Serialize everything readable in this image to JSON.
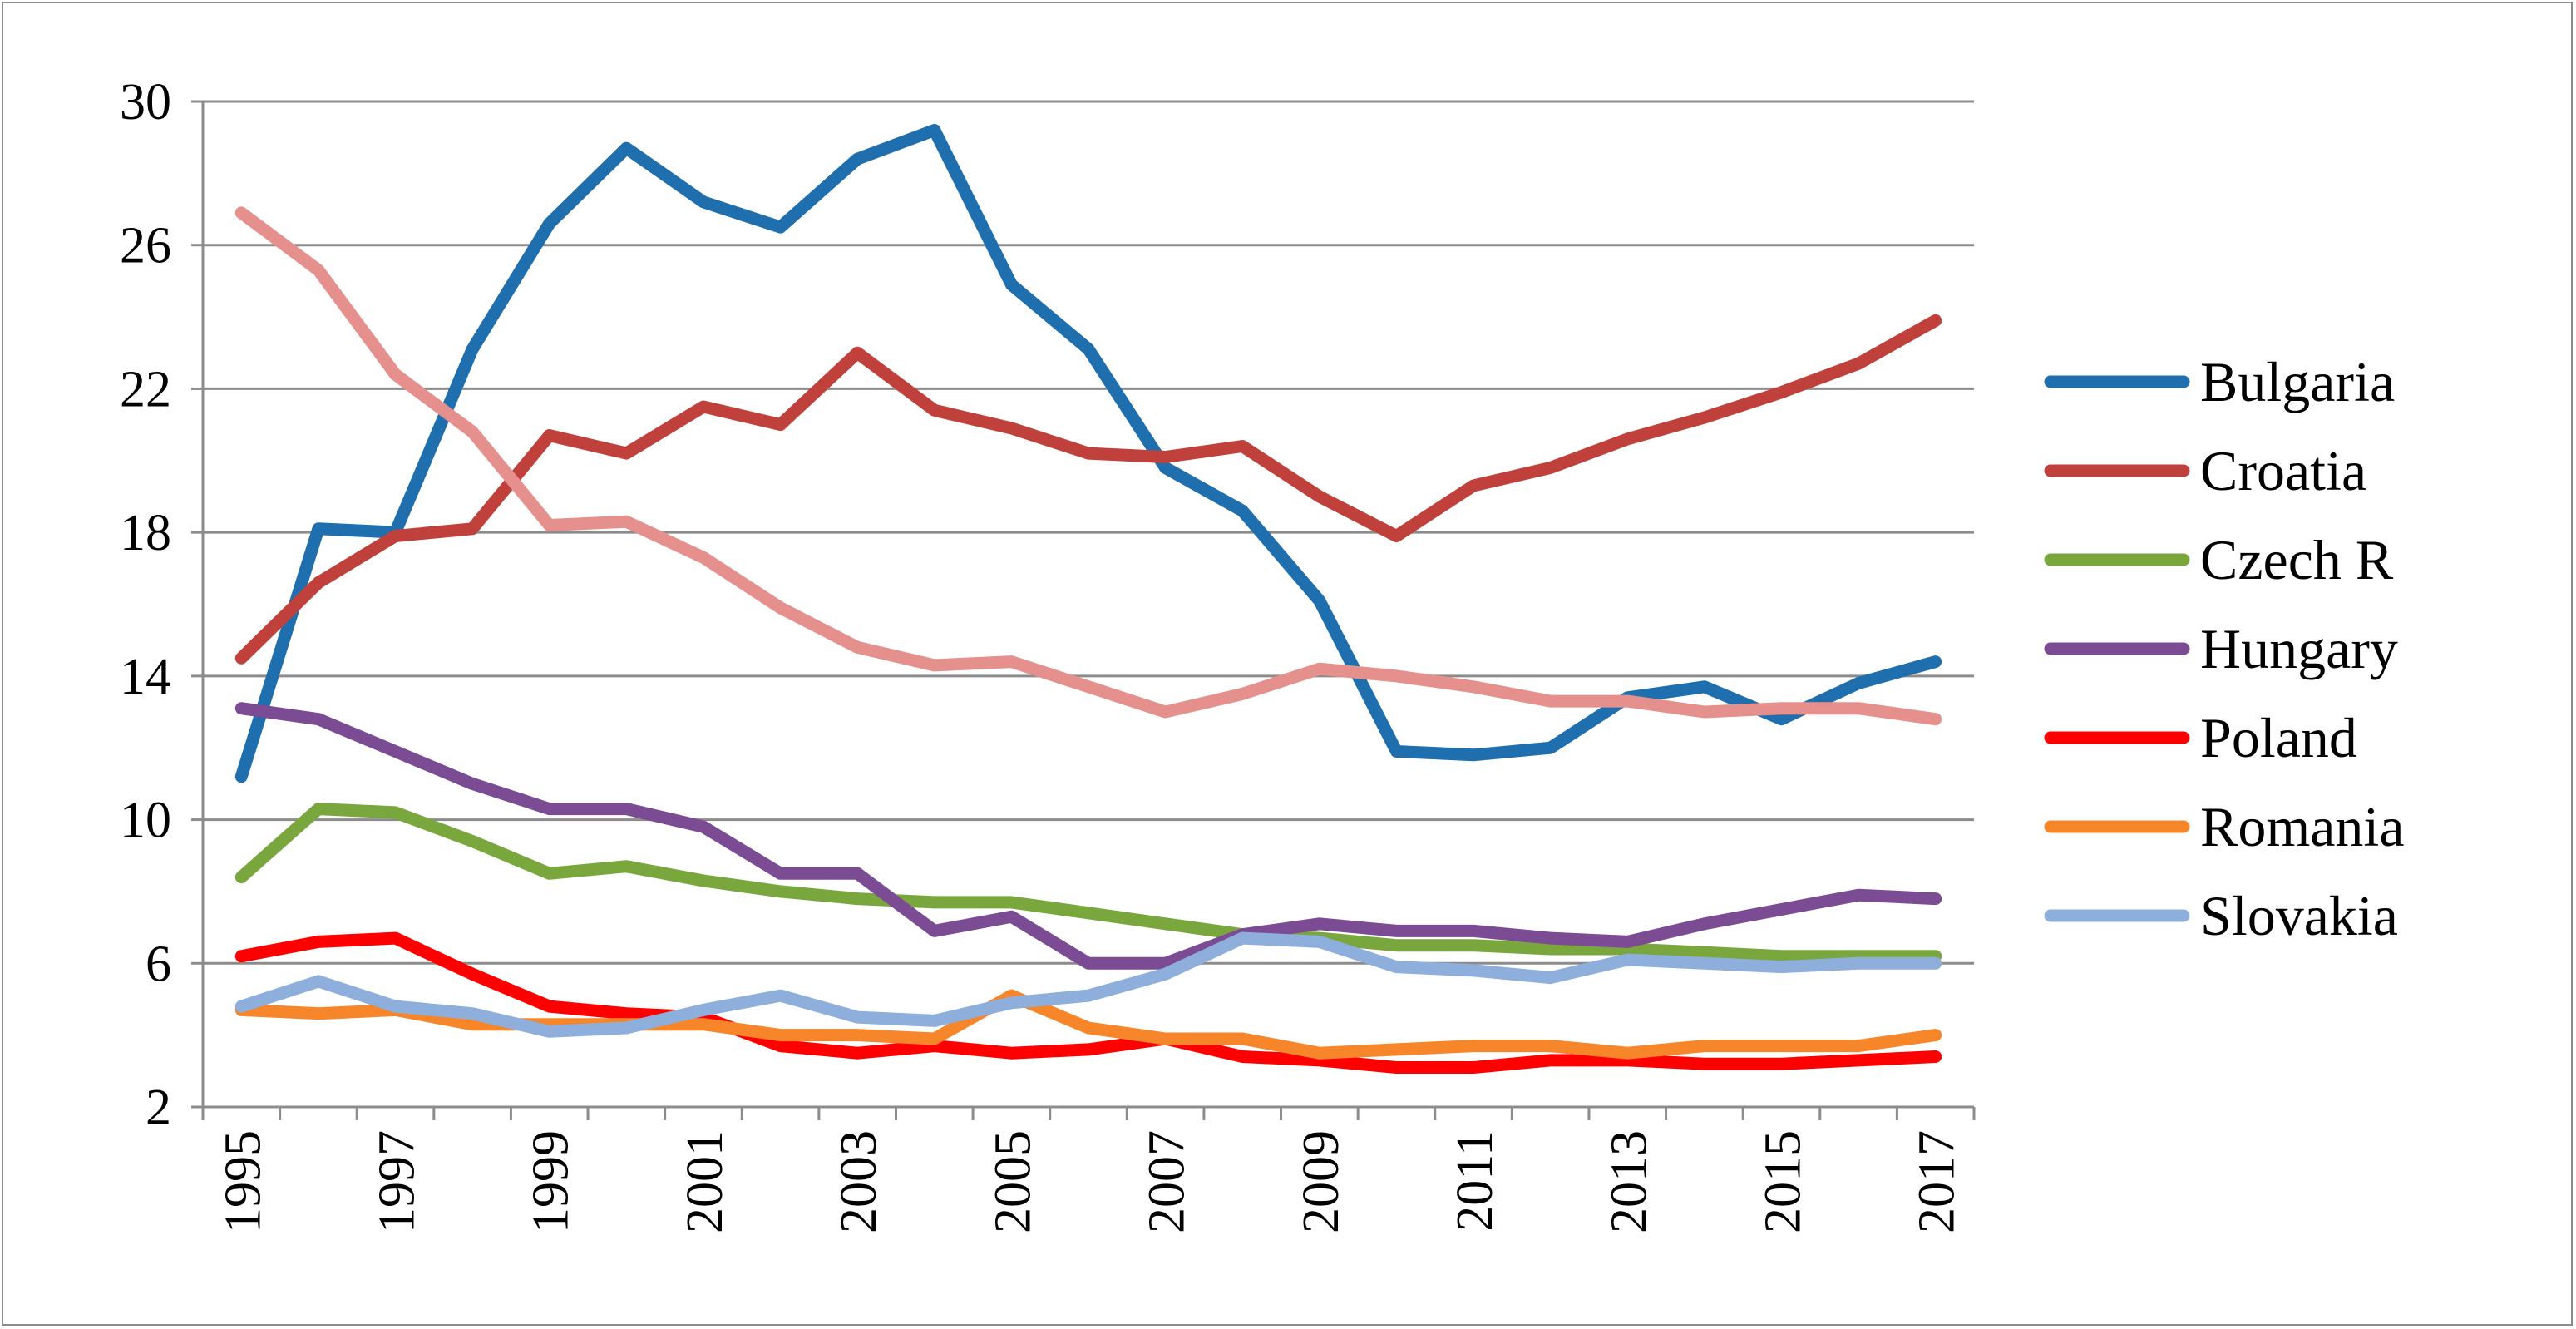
{
  "chart_data": {
    "type": "line",
    "title": "",
    "xlabel": "",
    "ylabel": "",
    "ylim": [
      2,
      30
    ],
    "yticks": [
      2,
      6,
      10,
      14,
      18,
      22,
      26,
      30
    ],
    "ytick_labels": [
      "2",
      "6",
      "10",
      "14",
      "18",
      "22",
      "26",
      "30"
    ],
    "x": [
      1995,
      1996,
      1997,
      1998,
      1999,
      2000,
      2001,
      2002,
      2003,
      2004,
      2005,
      2006,
      2007,
      2008,
      2009,
      2010,
      2011,
      2012,
      2013,
      2014,
      2015,
      2016,
      2017
    ],
    "xtick_labels": [
      "1995",
      "1997",
      "1999",
      "2001",
      "2003",
      "2005",
      "2007",
      "2009",
      "2011",
      "2013",
      "2015",
      "2017"
    ],
    "grid": true,
    "legend_position": "right",
    "series": [
      {
        "name": "Bulgaria",
        "color": "#1f6fae",
        "in_legend": true,
        "values": [
          11.2,
          18.1,
          18.0,
          23.1,
          26.6,
          28.7,
          27.2,
          26.5,
          28.4,
          29.2,
          24.9,
          23.1,
          19.8,
          18.6,
          16.1,
          11.9,
          11.8,
          12.0,
          13.4,
          13.7,
          12.8,
          13.8,
          14.4
        ]
      },
      {
        "name": "Croatia",
        "color": "#c0413b",
        "in_legend": true,
        "values": [
          14.5,
          16.6,
          17.9,
          18.1,
          20.7,
          20.2,
          21.5,
          21.0,
          23.0,
          21.4,
          20.9,
          20.2,
          20.1,
          20.4,
          19.0,
          17.9,
          19.3,
          19.8,
          20.6,
          21.2,
          21.9,
          22.7,
          23.9
        ]
      },
      {
        "name": "Czech R",
        "color": "#7aa63e",
        "in_legend": true,
        "values": [
          8.4,
          10.3,
          10.2,
          9.4,
          8.5,
          8.7,
          8.3,
          8.0,
          7.8,
          7.7,
          7.7,
          7.4,
          7.1,
          6.8,
          6.7,
          6.5,
          6.5,
          6.4,
          6.4,
          6.3,
          6.2,
          6.2,
          6.2
        ]
      },
      {
        "name": "Hungary",
        "color": "#7b4c94",
        "in_legend": true,
        "values": [
          13.1,
          12.8,
          11.9,
          11.0,
          10.3,
          10.3,
          9.8,
          8.5,
          8.5,
          6.9,
          7.3,
          6.0,
          6.0,
          6.8,
          7.1,
          6.9,
          6.9,
          6.7,
          6.6,
          7.1,
          7.5,
          7.9,
          7.8
        ]
      },
      {
        "name": "Poland",
        "color": "#ff0000",
        "in_legend": true,
        "values": [
          6.2,
          6.6,
          6.7,
          5.7,
          4.8,
          4.6,
          4.5,
          3.7,
          3.5,
          3.7,
          3.5,
          3.6,
          3.9,
          3.4,
          3.3,
          3.1,
          3.1,
          3.3,
          3.3,
          3.2,
          3.2,
          3.3,
          3.4
        ]
      },
      {
        "name": "Romania",
        "color": "#f7862a",
        "in_legend": true,
        "values": [
          4.7,
          4.6,
          4.7,
          4.3,
          4.3,
          4.3,
          4.3,
          4.0,
          4.0,
          3.9,
          5.1,
          4.2,
          3.9,
          3.9,
          3.5,
          3.6,
          3.7,
          3.7,
          3.5,
          3.7,
          3.7,
          3.7,
          4.0
        ]
      },
      {
        "name": "Slovakia",
        "color": "#8eaedc",
        "in_legend": true,
        "values": [
          4.8,
          5.5,
          4.8,
          4.6,
          4.1,
          4.2,
          4.7,
          5.1,
          4.5,
          4.4,
          4.9,
          5.1,
          5.7,
          6.7,
          6.6,
          5.9,
          5.8,
          5.6,
          6.1,
          6.0,
          5.9,
          6.0,
          6.0
        ]
      },
      {
        "name": "",
        "color": "#e6908e",
        "in_legend": false,
        "values": [
          26.9,
          25.3,
          22.4,
          20.8,
          18.2,
          18.3,
          17.3,
          15.9,
          14.8,
          14.3,
          14.4,
          13.7,
          13.0,
          13.5,
          14.2,
          14.0,
          13.7,
          13.3,
          13.3,
          13.0,
          13.1,
          13.1,
          12.8
        ]
      }
    ]
  }
}
